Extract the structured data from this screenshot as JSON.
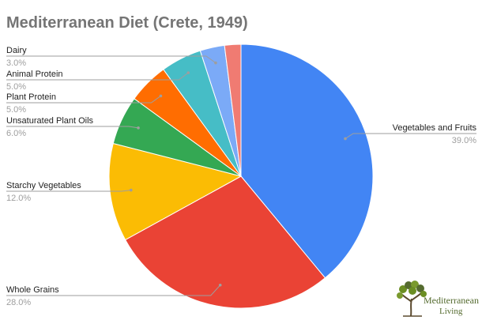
{
  "chart_data": {
    "type": "pie",
    "title": "Mediterranean Diet (Crete, 1949)",
    "slices": [
      {
        "label": "Vegetables and Fruits",
        "value": 39.0,
        "value_label": "39.0%",
        "color": "#4285f4"
      },
      {
        "label": "Whole Grains",
        "value": 28.0,
        "value_label": "28.0%",
        "color": "#ea4335"
      },
      {
        "label": "Starchy Vegetables",
        "value": 12.0,
        "value_label": "12.0%",
        "color": "#fbbc04"
      },
      {
        "label": "Unsaturated Plant Oils",
        "value": 6.0,
        "value_label": "6.0%",
        "color": "#34a853"
      },
      {
        "label": "Plant Protein",
        "value": 5.0,
        "value_label": "5.0%",
        "color": "#ff6d01"
      },
      {
        "label": "Animal Protein",
        "value": 5.0,
        "value_label": "5.0%",
        "color": "#46bdc6"
      },
      {
        "label": "Dairy",
        "value": 3.0,
        "value_label": "3.0%",
        "color": "#7baaf7"
      },
      {
        "label": "",
        "value": 2.0,
        "value_label": "",
        "color": "#f07b72"
      }
    ]
  },
  "logo": {
    "line1": "Mediterranean",
    "line2": "Living"
  }
}
